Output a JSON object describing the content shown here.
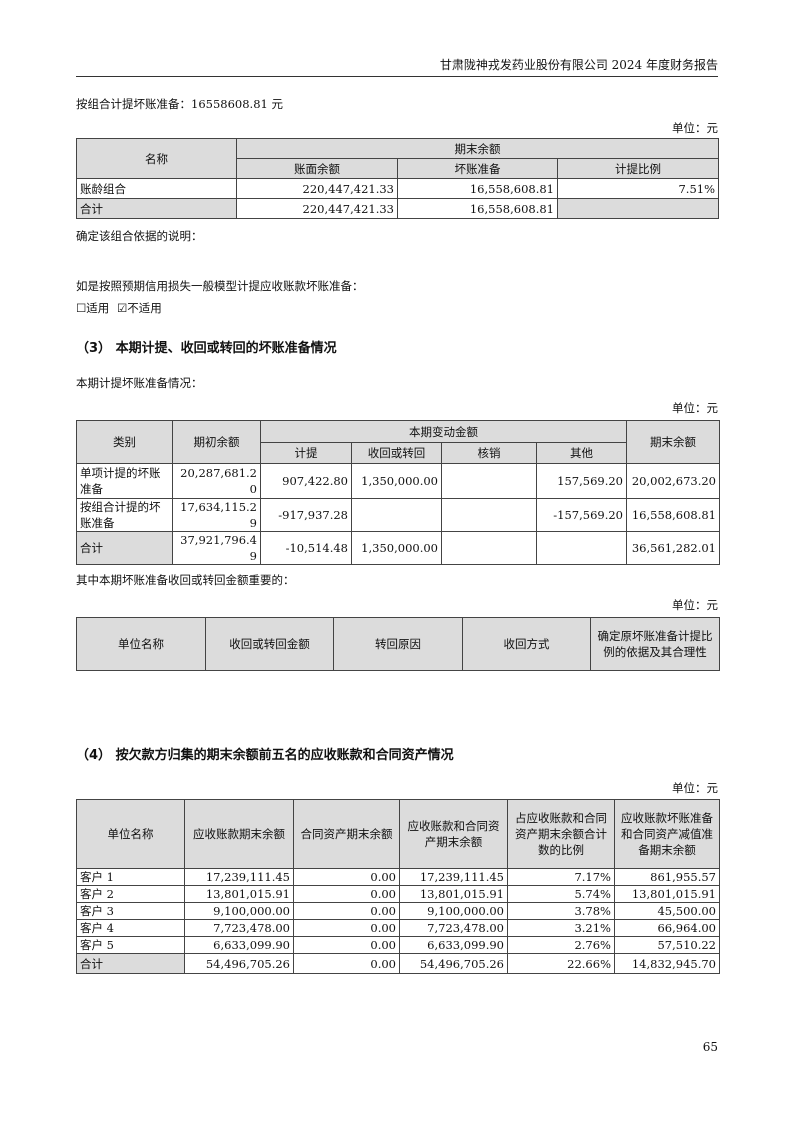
{
  "header": {
    "title": "甘肃陇神戎发药业股份有限公司 2024 年度财务报告"
  },
  "intro": "按组合计提坏账准备：16558608.81 元",
  "unit": "单位：元",
  "table1": {
    "name_header": "名称",
    "group_header": "期末余额",
    "cols": [
      "账面余额",
      "坏账准备",
      "计提比例"
    ],
    "rows": [
      [
        "账龄组合",
        "220,447,421.33",
        "16,558,608.81",
        "7.51%"
      ],
      [
        "合计",
        "220,447,421.33",
        "16,558,608.81",
        ""
      ]
    ]
  },
  "basis_note": "确定该组合依据的说明：",
  "ecl_note": "如是按照预期信用损失一般模型计提应收账款坏账准备：",
  "ecl_options": {
    "applicable": "☐适用",
    "not_applicable": "☑不适用"
  },
  "section3": {
    "title": "（3） 本期计提、收回或转回的坏账准备情况",
    "subtitle": "本期计提坏账准备情况："
  },
  "table2": {
    "headers": {
      "category": "类别",
      "opening": "期初余额",
      "change": "本期变动金额",
      "closing": "期末余额"
    },
    "sub": [
      "计提",
      "收回或转回",
      "核销",
      "其他"
    ],
    "rows": [
      [
        "单项计提的坏账准备",
        "20,287,681.20",
        "907,422.80",
        "1,350,000.00",
        "",
        "157,569.20",
        "20,002,673.20"
      ],
      [
        "按组合计提的坏账准备",
        "17,634,115.29",
        "-917,937.28",
        "",
        "",
        "-157,569.20",
        "16,558,608.81"
      ],
      [
        "合计",
        "37,921,796.49",
        "-10,514.48",
        "1,350,000.00",
        "",
        "",
        "36,561,282.01"
      ]
    ]
  },
  "important_note": "其中本期坏账准备收回或转回金额重要的：",
  "table3": {
    "headers": [
      "单位名称",
      "收回或转回金额",
      "转回原因",
      "收回方式",
      "确定原坏账准备计提比例的依据及其合理性"
    ]
  },
  "section4": {
    "title": "（4） 按欠款方归集的期末余额前五名的应收账款和合同资产情况"
  },
  "table4": {
    "headers": [
      "单位名称",
      "应收账款期末余额",
      "合同资产期末余额",
      "应收账款和合同资产期末余额",
      "占应收账款和合同资产期末余额合计数的比例",
      "应收账款坏账准备和合同资产减值准备期末余额"
    ],
    "rows": [
      [
        "客户 1",
        "17,239,111.45",
        "0.00",
        "17,239,111.45",
        "7.17%",
        "861,955.57"
      ],
      [
        "客户 2",
        "13,801,015.91",
        "0.00",
        "13,801,015.91",
        "5.74%",
        "13,801,015.91"
      ],
      [
        "客户 3",
        "9,100,000.00",
        "0.00",
        "9,100,000.00",
        "3.78%",
        "45,500.00"
      ],
      [
        "客户 4",
        "7,723,478.00",
        "0.00",
        "7,723,478.00",
        "3.21%",
        "66,964.00"
      ],
      [
        "客户 5",
        "6,633,099.90",
        "0.00",
        "6,633,099.90",
        "2.76%",
        "57,510.22"
      ],
      [
        "合计",
        "54,496,705.26",
        "0.00",
        "54,496,705.26",
        "22.66%",
        "14,832,945.70"
      ]
    ]
  },
  "page_number": "65"
}
